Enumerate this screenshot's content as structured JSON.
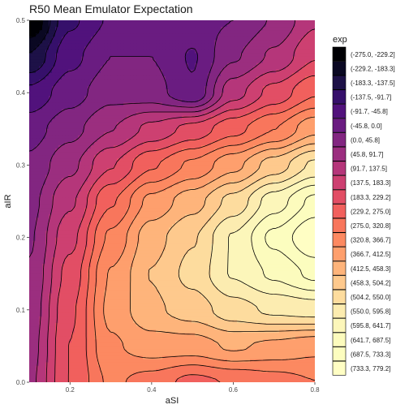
{
  "chart_data": {
    "type": "heatmap",
    "subtype": "filled-contour",
    "title": "R50 Mean Emulator Expectation",
    "xlabel": "aSI",
    "ylabel": "aIR",
    "xlim": [
      0.1,
      0.8
    ],
    "ylim": [
      0.0,
      0.5
    ],
    "x_ticks": [
      "0.2",
      "0.4",
      "0.6",
      "0.8"
    ],
    "y_ticks": [
      "0.0",
      "0.1",
      "0.2",
      "0.3",
      "0.4",
      "0.5"
    ],
    "grid": false,
    "legend": {
      "title": "exp",
      "placement": "right",
      "bins": [
        {
          "label": "(-275.0, -229.2]",
          "color": "#000004"
        },
        {
          "label": "(-229.2, -183.3]",
          "color": "#0a0822"
        },
        {
          "label": "(-183.3, -137.5]",
          "color": "#1d1147"
        },
        {
          "label": "(-137.5, -91.7]",
          "color": "#36106b"
        },
        {
          "label": "(-91.7, -45.8]",
          "color": "#51127c"
        },
        {
          "label": "(-45.8, 0.0]",
          "color": "#6a1c81"
        },
        {
          "label": "(0.0, 45.8]",
          "color": "#822681"
        },
        {
          "label": "(45.8, 91.7]",
          "color": "#9b2e7f"
        },
        {
          "label": "(91.7, 137.5]",
          "color": "#b5367a"
        },
        {
          "label": "(137.5, 183.3]",
          "color": "#cd4071"
        },
        {
          "label": "(183.3, 229.2]",
          "color": "#e24e65"
        },
        {
          "label": "(229.2, 275.0]",
          "color": "#f1605d"
        },
        {
          "label": "(275.0, 320.8]",
          "color": "#f8765c"
        },
        {
          "label": "(320.8, 366.7]",
          "color": "#fc8961"
        },
        {
          "label": "(366.7, 412.5]",
          "color": "#fe9f6d"
        },
        {
          "label": "(412.5, 458.3]",
          "color": "#feb47b"
        },
        {
          "label": "(458.3, 504.2]",
          "color": "#fec98d"
        },
        {
          "label": "(504.2, 550.0]",
          "color": "#fddc9e"
        },
        {
          "label": "(550.0, 595.8]",
          "color": "#fcecb0"
        },
        {
          "label": "(595.8, 641.7]",
          "color": "#fcf6ba"
        },
        {
          "label": "(641.7, 687.5]",
          "color": "#fcfbbd"
        },
        {
          "label": "(687.5, 733.3]",
          "color": "#fcfdbf"
        },
        {
          "label": "(733.3, 779.2]",
          "color": "#fffec4"
        }
      ]
    },
    "surface": {
      "x": [
        0.1,
        0.2,
        0.3,
        0.4,
        0.5,
        0.6,
        0.7,
        0.8
      ],
      "y": [
        0.0,
        0.05,
        0.1,
        0.15,
        0.2,
        0.25,
        0.3,
        0.35,
        0.4,
        0.45,
        0.5
      ],
      "z": [
        [
          80,
          230,
          330,
          300,
          260,
          280,
          300,
          320
        ],
        [
          70,
          230,
          360,
          390,
          390,
          420,
          400,
          380
        ],
        [
          60,
          220,
          380,
          450,
          480,
          530,
          560,
          570
        ],
        [
          50,
          200,
          370,
          460,
          520,
          600,
          650,
          700
        ],
        [
          40,
          170,
          330,
          440,
          500,
          600,
          700,
          779
        ],
        [
          30,
          130,
          270,
          380,
          440,
          520,
          620,
          700
        ],
        [
          10,
          80,
          180,
          270,
          330,
          400,
          480,
          560
        ],
        [
          -20,
          30,
          90,
          150,
          200,
          260,
          320,
          400
        ],
        [
          -80,
          -20,
          30,
          20,
          -40,
          120,
          200,
          270
        ],
        [
          -180,
          -60,
          0,
          0,
          -50,
          40,
          100,
          180
        ],
        [
          -275,
          -100,
          -40,
          -40,
          -20,
          0,
          50,
          130
        ]
      ]
    }
  }
}
